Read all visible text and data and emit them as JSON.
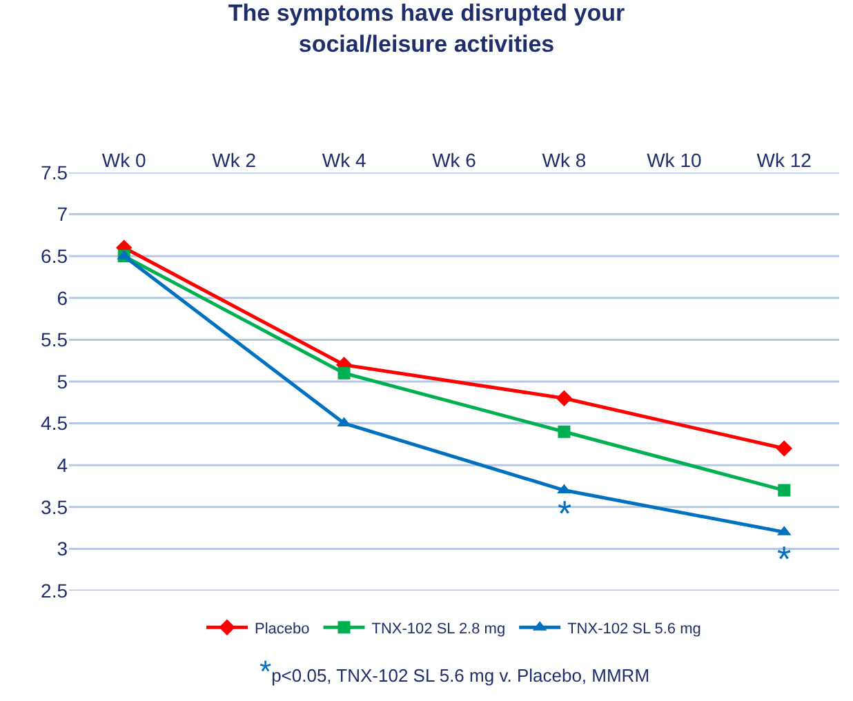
{
  "chart_data": {
    "type": "line",
    "title": "The symptoms have disrupted your social/leisure activities",
    "categories": [
      "Wk 0",
      "Wk 2",
      "Wk 4",
      "Wk 6",
      "Wk 8",
      "Wk 10",
      "Wk 12"
    ],
    "series": [
      {
        "name": "Placebo",
        "color": "#ff0000",
        "marker": "diamond",
        "values": [
          6.6,
          null,
          5.2,
          null,
          4.8,
          null,
          4.2
        ]
      },
      {
        "name": "TNX-102 SL 2.8 mg",
        "color": "#00b050",
        "marker": "square",
        "values": [
          6.5,
          null,
          5.1,
          null,
          4.4,
          null,
          3.7
        ]
      },
      {
        "name": "TNX-102 SL 5.6 mg",
        "color": "#0070c0",
        "marker": "triangle",
        "values": [
          6.5,
          null,
          4.5,
          null,
          3.7,
          null,
          3.2
        ]
      }
    ],
    "ylim": [
      2.5,
      7.5
    ],
    "yticks": [
      2.5,
      3,
      3.5,
      4,
      4.5,
      5,
      5.5,
      6,
      6.5,
      7,
      7.5
    ],
    "grid": "y",
    "legend": "bottom",
    "annotations": [
      "*",
      "*",
      "*p<0.05, TNX-102 SL 5.6 mg v. Placebo, MMRM"
    ]
  }
}
